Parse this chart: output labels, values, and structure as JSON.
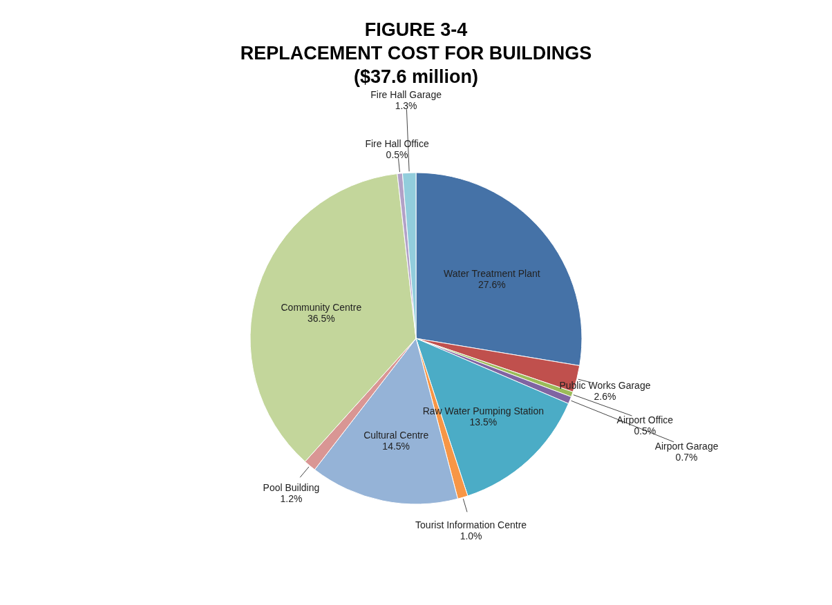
{
  "chart_data": {
    "type": "pie",
    "title": "FIGURE 3-4\nREPLACEMENT COST FOR BUILDINGS\n($37.6 million)",
    "categories": [
      "Water Treatment Plant",
      "Public Works Garage",
      "Airport Office",
      "Airport Garage",
      "Raw Water Pumping Station",
      "Tourist Information Centre",
      "Cultural Centre",
      "Pool Building",
      "Community Centre",
      "Fire Hall Office",
      "Fire Hall Garage"
    ],
    "values": [
      27.6,
      2.6,
      0.5,
      0.7,
      13.5,
      1.0,
      14.5,
      1.2,
      36.5,
      0.5,
      1.3
    ],
    "value_labels": [
      "27.6%",
      "2.6%",
      "0.5%",
      "0.7%",
      "13.5%",
      "1.0%",
      "14.5%",
      "1.2%",
      "36.5%",
      "0.5%",
      "1.3%"
    ],
    "colors": [
      "#4572a7",
      "#c0504d",
      "#9bbb59",
      "#8064a2",
      "#4bacc6",
      "#f79646",
      "#95b3d7",
      "#d99694",
      "#c3d69b",
      "#b2a1c7",
      "#92cddc"
    ]
  }
}
